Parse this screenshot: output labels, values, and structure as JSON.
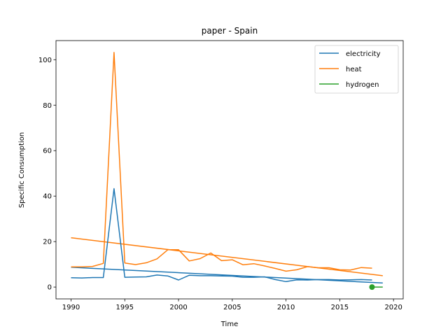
{
  "chart_data": {
    "type": "line",
    "title": "paper - Spain",
    "xlabel": "Time",
    "ylabel": "Specific Consumption",
    "xlim": [
      1988.6,
      2020.9
    ],
    "ylim": [
      -5.2,
      108.4
    ],
    "xticks": [
      1990,
      1995,
      2000,
      2005,
      2010,
      2015,
      2020
    ],
    "yticks": [
      0,
      20,
      40,
      60,
      80,
      100
    ],
    "grid": false,
    "legend_position": "top-right",
    "series": [
      {
        "name": "electricity",
        "color": "#1f77b4",
        "x": [
          1990,
          1991,
          1992,
          1993,
          1994,
          1995,
          1996,
          1997,
          1998,
          1999,
          2000,
          2001,
          2002,
          2003,
          2004,
          2005,
          2006,
          2007,
          2008,
          2009,
          2010,
          2011,
          2012,
          2013,
          2014,
          2015,
          2016,
          2017,
          2018
        ],
        "values": [
          4.1,
          4.0,
          4.2,
          4.2,
          43.3,
          4.3,
          4.4,
          4.5,
          5.3,
          4.9,
          3.1,
          5.2,
          5.0,
          5.0,
          4.9,
          4.8,
          4.3,
          4.3,
          4.5,
          3.3,
          2.4,
          3.2,
          3.1,
          3.3,
          3.3,
          3.1,
          3.2,
          3.3,
          3.1
        ]
      },
      {
        "name": "heat",
        "color": "#ff7f0e",
        "x": [
          1990,
          1991,
          1992,
          1993,
          1994,
          1995,
          1996,
          1997,
          1998,
          1999,
          2000,
          2001,
          2002,
          2003,
          2004,
          2005,
          2006,
          2007,
          2008,
          2009,
          2010,
          2011,
          2012,
          2013,
          2014,
          2015,
          2016,
          2017,
          2018
        ],
        "values": [
          8.9,
          8.9,
          9.1,
          10.4,
          103.2,
          10.6,
          9.9,
          10.7,
          12.4,
          16.4,
          16.4,
          11.5,
          12.5,
          15.0,
          11.6,
          12.0,
          9.8,
          10.3,
          9.3,
          8.2,
          7.0,
          7.6,
          9.0,
          8.5,
          8.5,
          7.6,
          7.5,
          8.6,
          8.3
        ]
      },
      {
        "name": "hydrogen",
        "color": "#2ca02c",
        "x": [
          2018
        ],
        "values": [
          0.0
        ]
      }
    ],
    "trend_lines": [
      {
        "series": "electricity",
        "color": "#1f77b4",
        "x": [
          1990,
          2019
        ],
        "values": [
          8.7,
          1.8
        ]
      },
      {
        "series": "heat",
        "color": "#ff7f0e",
        "x": [
          1990,
          2019
        ],
        "values": [
          21.7,
          5.0
        ]
      },
      {
        "series": "hydrogen",
        "color": "#2ca02c",
        "x": [
          2018,
          2019
        ],
        "values": [
          0.0,
          0.0
        ]
      }
    ]
  }
}
